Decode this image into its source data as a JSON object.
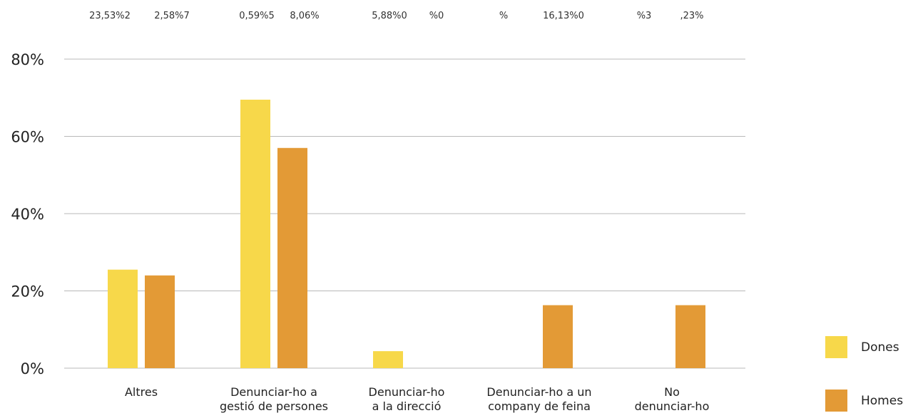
{
  "top_labels": [
    "23,53%2",
    "2,58%7",
    "0,59%5",
    "8,06%",
    "5,88%0",
    "%0",
    "%",
    "16,13%0",
    "%3",
    ",23%"
  ],
  "colors": {
    "Dones": "#F7D84A",
    "Homes": "#E39A36",
    "grid": "#B8B8B8"
  },
  "chart_data": {
    "type": "bar",
    "categories": [
      [
        "Altres"
      ],
      [
        "Denunciar-ho a",
        "gestió de persones"
      ],
      [
        "Denunciar-ho",
        "a la direcció"
      ],
      [
        "Denunciar-ho a un",
        "company de feina"
      ],
      [
        "No",
        "denunciar-ho"
      ]
    ],
    "series": [
      {
        "name": "Dones",
        "values": [
          25.5,
          69.5,
          4.4,
          0,
          0
        ]
      },
      {
        "name": "Homes",
        "values": [
          24.0,
          57.0,
          0,
          16.3,
          16.3
        ]
      }
    ],
    "y_ticks": [
      "0%",
      "20%",
      "40%",
      "60%",
      "80%"
    ],
    "ylim": [
      0,
      80
    ],
    "grid": true,
    "legend_position": "bottom-right"
  }
}
